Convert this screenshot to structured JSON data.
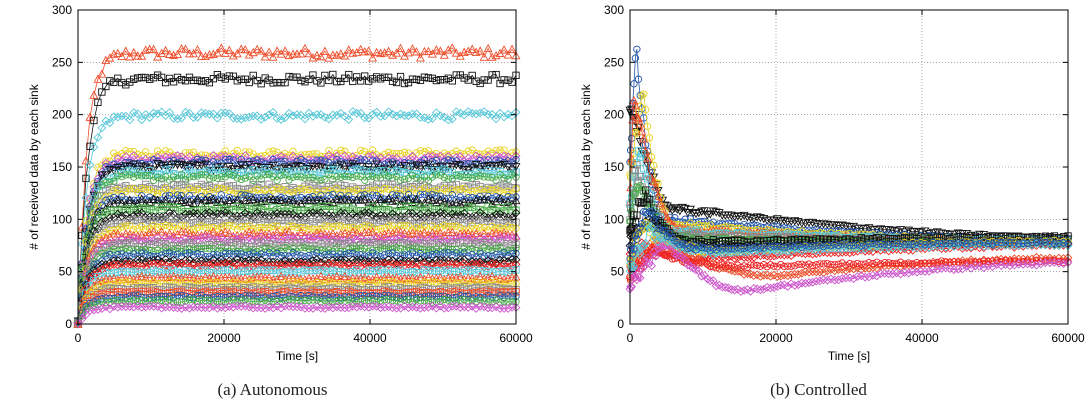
{
  "charts": [
    {
      "caption": "(a)  Autonomous",
      "xlabel": "Time [s]",
      "ylabel": "# of received data by each sink",
      "xlim": [
        0,
        60000
      ],
      "ylim": [
        0,
        300
      ],
      "xticks": [
        0,
        20000,
        40000,
        60000
      ],
      "yticks": [
        0,
        50,
        100,
        150,
        200,
        250,
        300
      ],
      "grid": true
    },
    {
      "caption": "(b)  Controlled",
      "xlabel": "Time [s]",
      "ylabel": "# of received data by each sink",
      "xlim": [
        0,
        60000
      ],
      "ylim": [
        0,
        300
      ],
      "xticks": [
        0,
        20000,
        40000,
        60000
      ],
      "yticks": [
        0,
        50,
        100,
        150,
        200,
        250,
        300
      ],
      "grid": true
    }
  ],
  "chart_data": [
    {
      "type": "line",
      "title": "",
      "xlabel": "Time [s]",
      "ylabel": "# of received data by each sink",
      "xlim": [
        0,
        60000
      ],
      "ylim": [
        0,
        300
      ],
      "note_series_shape": "each series rises quickly after t=0 and stays roughly flat at its level",
      "series": [
        {
          "color": "#ee4d2a",
          "marker": "triangle",
          "level": 259
        },
        {
          "color": "#111111",
          "marker": "square",
          "level": 234
        },
        {
          "color": "#55c7d8",
          "marker": "diamond",
          "level": 199
        },
        {
          "color": "#e8d21f",
          "marker": "circle",
          "level": 163
        },
        {
          "color": "#cc55cc",
          "marker": "diamond",
          "level": 158
        },
        {
          "color": "#2255aa",
          "marker": "circle",
          "level": 154
        },
        {
          "color": "#111111",
          "marker": "triangle-down",
          "level": 150
        },
        {
          "color": "#55c7d8",
          "marker": "square",
          "level": 145
        },
        {
          "color": "#44aa44",
          "marker": "circle",
          "level": 140
        },
        {
          "color": "#888888",
          "marker": "square",
          "level": 131
        },
        {
          "color": "#e8d21f",
          "marker": "circle",
          "level": 127
        },
        {
          "color": "#2255aa",
          "marker": "circle",
          "level": 121
        },
        {
          "color": "#111111",
          "marker": "triangle",
          "level": 117
        },
        {
          "color": "#44aa44",
          "marker": "square",
          "level": 110
        },
        {
          "color": "#111111",
          "marker": "diamond",
          "level": 104
        },
        {
          "color": "#888888",
          "marker": "square",
          "level": 98
        },
        {
          "color": "#e8d21f",
          "marker": "circle",
          "level": 92
        },
        {
          "color": "#ee4d2a",
          "marker": "triangle",
          "level": 86
        },
        {
          "color": "#cc55cc",
          "marker": "diamond",
          "level": 81
        },
        {
          "color": "#888888",
          "marker": "square",
          "level": 76
        },
        {
          "color": "#44aa44",
          "marker": "circle",
          "level": 71
        },
        {
          "color": "#2255aa",
          "marker": "circle",
          "level": 66
        },
        {
          "color": "#111111",
          "marker": "diamond",
          "level": 60
        },
        {
          "color": "#ee2222",
          "marker": "diamond",
          "level": 56
        },
        {
          "color": "#55c7d8",
          "marker": "square",
          "level": 50
        },
        {
          "color": "#ee4d2a",
          "marker": "triangle",
          "level": 44
        },
        {
          "color": "#e8d21f",
          "marker": "circle",
          "level": 39
        },
        {
          "color": "#888888",
          "marker": "square",
          "level": 34
        },
        {
          "color": "#ee4d2a",
          "marker": "square",
          "level": 30
        },
        {
          "color": "#2255aa",
          "marker": "circle",
          "level": 26
        },
        {
          "color": "#44aa44",
          "marker": "circle",
          "level": 22
        },
        {
          "color": "#cc55cc",
          "marker": "diamond",
          "level": 16
        }
      ]
    },
    {
      "type": "line",
      "title": "",
      "xlabel": "Time [s]",
      "ylabel": "# of received data by each sink",
      "xlim": [
        0,
        60000
      ],
      "ylim": [
        0,
        300
      ],
      "note_series_shape": "each series starts spread out with early spikes and converges toward about 75-80 by 60000 s",
      "series": [
        {
          "color": "#111111",
          "marker": "triangle-down",
          "start": 200,
          "peak": 200,
          "peak_t": 600,
          "dip": 110,
          "dip_t": 6000,
          "end": 82
        },
        {
          "color": "#2255aa",
          "marker": "circle",
          "start": 150,
          "peak": 268,
          "peak_t": 800,
          "dip": 100,
          "dip_t": 5000,
          "end": 80
        },
        {
          "color": "#e8d21f",
          "marker": "circle",
          "start": 140,
          "peak": 230,
          "peak_t": 1800,
          "dip": 95,
          "dip_t": 6000,
          "end": 79
        },
        {
          "color": "#ee4d2a",
          "marker": "triangle",
          "start": 120,
          "peak": 220,
          "peak_t": 500,
          "dip": 90,
          "dip_t": 7000,
          "end": 78
        },
        {
          "color": "#55c7d8",
          "marker": "square",
          "start": 110,
          "peak": 170,
          "peak_t": 1200,
          "dip": 88,
          "dip_t": 6000,
          "end": 80
        },
        {
          "color": "#888888",
          "marker": "square",
          "start": 100,
          "peak": 150,
          "peak_t": 900,
          "dip": 85,
          "dip_t": 6000,
          "end": 78
        },
        {
          "color": "#44aa44",
          "marker": "circle",
          "start": 95,
          "peak": 140,
          "peak_t": 1000,
          "dip": 82,
          "dip_t": 7000,
          "end": 77
        },
        {
          "color": "#111111",
          "marker": "square",
          "start": 90,
          "peak": 125,
          "peak_t": 2000,
          "dip": 78,
          "dip_t": 8000,
          "end": 83
        },
        {
          "color": "#111111",
          "marker": "diamond",
          "start": 80,
          "peak": 100,
          "peak_t": 3000,
          "dip": 74,
          "dip_t": 8000,
          "end": 77
        },
        {
          "color": "#ee2222",
          "marker": "diamond",
          "start": 60,
          "peak": 75,
          "peak_t": 2000,
          "dip": 62,
          "dip_t": 10000,
          "end": 75
        },
        {
          "color": "#ee4d2a",
          "marker": "diamond",
          "start": 50,
          "peak": 80,
          "peak_t": 4000,
          "dip": 46,
          "dip_t": 20000,
          "end": 63
        },
        {
          "color": "#ee2222",
          "marker": "circle",
          "start": 45,
          "peak": 70,
          "peak_t": 3000,
          "dip": 55,
          "dip_t": 15000,
          "end": 60
        },
        {
          "color": "#cc55cc",
          "marker": "diamond",
          "start": 40,
          "peak": 78,
          "peak_t": 5000,
          "dip": 32,
          "dip_t": 16000,
          "end": 58
        },
        {
          "color": "#e8d21f",
          "marker": "circle",
          "start": 55,
          "peak": 95,
          "peak_t": 1500,
          "dip": 70,
          "dip_t": 12000,
          "end": 79
        },
        {
          "color": "#55c7d8",
          "marker": "diamond",
          "start": 50,
          "peak": 90,
          "peak_t": 2500,
          "dip": 68,
          "dip_t": 12000,
          "end": 76
        },
        {
          "color": "#2255aa",
          "marker": "circle",
          "start": 65,
          "peak": 110,
          "peak_t": 2000,
          "dip": 72,
          "dip_t": 10000,
          "end": 78
        }
      ]
    }
  ]
}
